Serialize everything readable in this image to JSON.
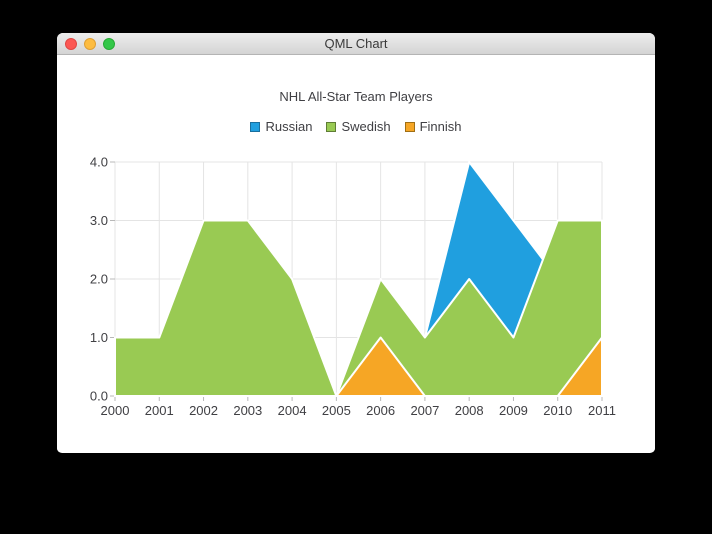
{
  "window": {
    "title": "QML Chart",
    "buttons": {
      "close": "close",
      "minimize": "minimize",
      "zoom": "zoom"
    }
  },
  "chart_data": {
    "type": "area",
    "title": "NHL All-Star Team Players",
    "x": [
      2000,
      2001,
      2002,
      2003,
      2004,
      2005,
      2006,
      2007,
      2008,
      2009,
      2010,
      2011
    ],
    "xlim": [
      2000,
      2011
    ],
    "ylim": [
      0,
      4
    ],
    "y_ticks": [
      0,
      1,
      2,
      3,
      4
    ],
    "y_tick_labels": [
      "0.0",
      "1.0",
      "2.0",
      "3.0",
      "4.0"
    ],
    "grid": true,
    "legend_position": "top",
    "area_border_color": "#ffffff",
    "series": [
      {
        "name": "Russian",
        "color": "#209fdf",
        "marker_border": "#1a6f9e",
        "values": [
          1,
          1,
          1,
          1,
          1,
          0,
          1,
          1,
          4,
          3,
          2,
          1
        ]
      },
      {
        "name": "Swedish",
        "color": "#99ca53",
        "marker_border": "#5f7d35",
        "values": [
          1,
          1,
          3,
          3,
          2,
          0,
          2,
          1,
          2,
          1,
          3,
          3
        ]
      },
      {
        "name": "Finnish",
        "color": "#f6a625",
        "marker_border": "#a06f15",
        "values": [
          0,
          0,
          0,
          0,
          0,
          0,
          1,
          0,
          0,
          0,
          0,
          1
        ]
      }
    ]
  },
  "colors": {
    "desktop_bg": "#000000",
    "window_bg": "#ffffff",
    "titlebar_top": "#ededed",
    "titlebar_bottom": "#d4d4d4",
    "titlebar_border": "#b4b4b4",
    "titlebar_text": "#3a3a3a",
    "grid_line": "#e4e4e4",
    "tick_mark": "#b8b8b8",
    "axis_label": "#404044",
    "traffic_red": "#fc5753",
    "traffic_yellow": "#fdbc40",
    "traffic_green": "#33c748"
  }
}
